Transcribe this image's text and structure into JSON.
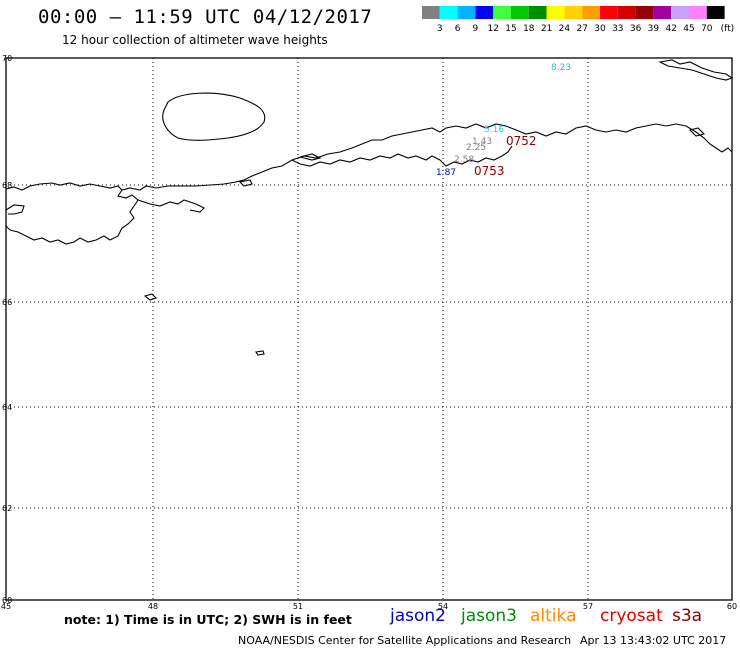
{
  "title": "00:00 – 11:59 UTC 04/12/2017",
  "subtitle": "12 hour collection of altimeter wave heights",
  "legend": {
    "unit": "(ft)",
    "ticks": [
      "3",
      "6",
      "9",
      "12",
      "15",
      "18",
      "21",
      "24",
      "27",
      "30",
      "33",
      "36",
      "39",
      "42",
      "45",
      "70"
    ],
    "colors": [
      "#808080",
      "#00ffff",
      "#00b4ff",
      "#0000ff",
      "#40ff40",
      "#00c800",
      "#008c00",
      "#ffff00",
      "#ffd200",
      "#ffa000",
      "#ff0000",
      "#d20000",
      "#960000",
      "#a000a0",
      "#c8a0ff",
      "#ff80ff",
      "#000000"
    ]
  },
  "map": {
    "lat_ticks": [
      "70",
      "68",
      "66",
      "64",
      "62",
      "60"
    ],
    "lon_ticks": [
      "45",
      "48",
      "51",
      "54",
      "57",
      "60"
    ]
  },
  "observations": [
    {
      "text": "8.23",
      "color": "#3ab0e0"
    },
    {
      "text": "5.16",
      "color": "#00e0ff"
    },
    {
      "text": "1.43",
      "color": "#808080"
    },
    {
      "text": "2.25",
      "color": "#808080"
    },
    {
      "text": "2.58",
      "color": "#808080"
    },
    {
      "text": "1.87",
      "color": "#0000c0"
    },
    {
      "text": "0752",
      "color": "#8b0000"
    },
    {
      "text": "0753",
      "color": "#8b0000"
    }
  ],
  "note": "note: 1) Time is in UTC; 2) SWH is in feet",
  "satellites": [
    {
      "name": "jason2",
      "color": "#0000c8"
    },
    {
      "name": "jason3",
      "color": "#008c00"
    },
    {
      "name": "altika",
      "color": "#ff8c00"
    },
    {
      "name": "cryosat",
      "color": "#e00000"
    },
    {
      "name": "s3a",
      "color": "#8b0000"
    }
  ],
  "footer": {
    "left": "NOAA/NESDIS Center for Satellite Applications and Research",
    "right": "Apr 13 13:43:02 UTC 2017"
  }
}
